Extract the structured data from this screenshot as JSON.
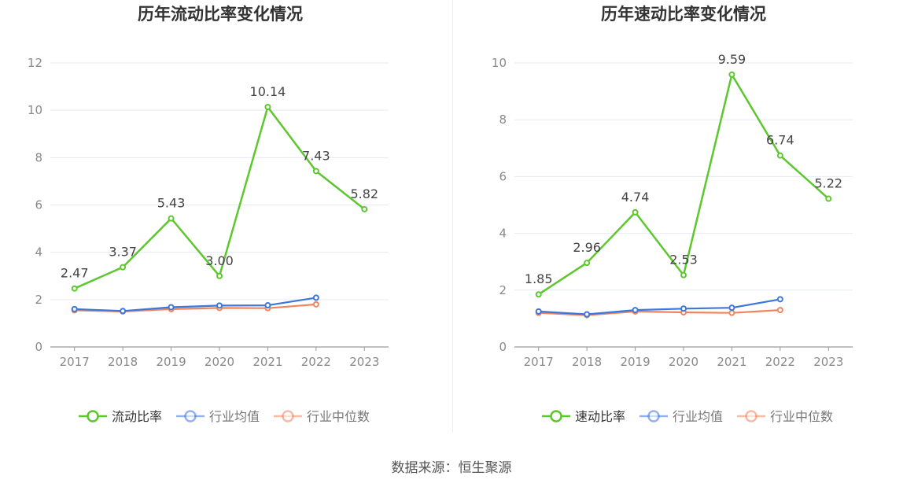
{
  "chart_data": [
    {
      "type": "line",
      "title": "历年流动比率变化情况",
      "categories": [
        "2017",
        "2018",
        "2019",
        "2020",
        "2021",
        "2022",
        "2023"
      ],
      "ylim": [
        0,
        12
      ],
      "yticks": [
        0,
        2,
        4,
        6,
        8,
        10,
        12
      ],
      "grid": true,
      "legend_position": "bottom",
      "series": [
        {
          "name": "流动比率",
          "color": "#5dc72e",
          "values": [
            2.47,
            3.37,
            5.43,
            3.0,
            10.14,
            7.43,
            5.82
          ],
          "data_labels": [
            "2.47",
            "3.37",
            "5.43",
            "3.00",
            "10.14",
            "7.43",
            "5.82"
          ]
        },
        {
          "name": "行业均值",
          "color": "#3d76dd",
          "values": [
            1.6,
            1.52,
            1.68,
            1.75,
            1.76,
            2.08,
            null
          ]
        },
        {
          "name": "行业中位数",
          "color": "#f0845c",
          "values": [
            1.55,
            1.5,
            1.6,
            1.65,
            1.64,
            1.8,
            null
          ]
        }
      ]
    },
    {
      "type": "line",
      "title": "历年速动比率变化情况",
      "categories": [
        "2017",
        "2018",
        "2019",
        "2020",
        "2021",
        "2022",
        "2023"
      ],
      "ylim": [
        0,
        10
      ],
      "yticks": [
        0,
        2,
        4,
        6,
        8,
        10
      ],
      "grid": true,
      "legend_position": "bottom",
      "series": [
        {
          "name": "速动比率",
          "color": "#5dc72e",
          "values": [
            1.85,
            2.96,
            4.74,
            2.53,
            9.59,
            6.74,
            5.22
          ],
          "data_labels": [
            "1.85",
            "2.96",
            "4.74",
            "2.53",
            "9.59",
            "6.74",
            "5.22"
          ]
        },
        {
          "name": "行业均值",
          "color": "#3d76dd",
          "values": [
            1.25,
            1.15,
            1.3,
            1.35,
            1.38,
            1.68,
            null
          ]
        },
        {
          "name": "行业中位数",
          "color": "#f0845c",
          "values": [
            1.2,
            1.12,
            1.25,
            1.22,
            1.2,
            1.3,
            null
          ]
        }
      ]
    }
  ],
  "footer": {
    "source": "数据来源：恒生聚源"
  }
}
